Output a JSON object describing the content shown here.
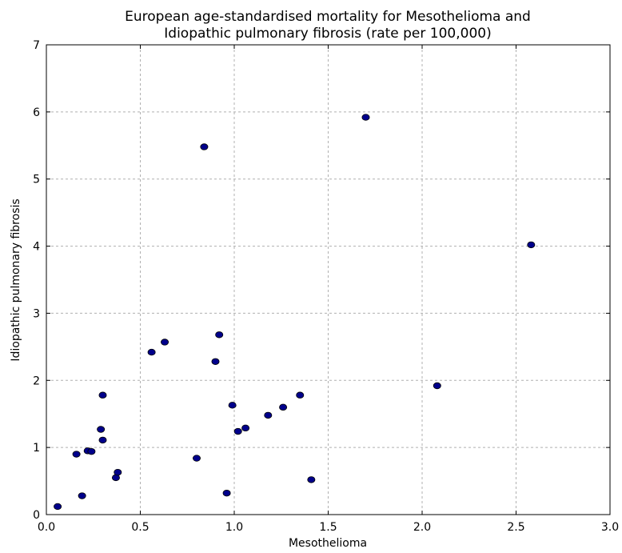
{
  "chart_data": {
    "type": "scatter",
    "title_lines": [
      "European age-standardised mortality for Mesothelioma and",
      "Idiopathic pulmonary fibrosis (rate per 100,000)"
    ],
    "xlabel": "Mesothelioma",
    "ylabel": "Idiopathic pulmonary fibrosis",
    "xlim": [
      0.0,
      3.0
    ],
    "ylim": [
      0,
      7
    ],
    "xticks": [
      "0.0",
      "0.5",
      "1.0",
      "1.5",
      "2.0",
      "2.5",
      "3.0"
    ],
    "yticks": [
      "0",
      "1",
      "2",
      "3",
      "4",
      "5",
      "6",
      "7"
    ],
    "grid": true,
    "colors": {
      "marker_fill": "#00008b",
      "marker_edge": "#000000",
      "grid": "#b0b0b0"
    },
    "points": [
      {
        "x": 0.06,
        "y": 0.12
      },
      {
        "x": 0.16,
        "y": 0.9
      },
      {
        "x": 0.19,
        "y": 0.28
      },
      {
        "x": 0.22,
        "y": 0.95
      },
      {
        "x": 0.24,
        "y": 0.94
      },
      {
        "x": 0.29,
        "y": 1.27
      },
      {
        "x": 0.3,
        "y": 1.11
      },
      {
        "x": 0.3,
        "y": 1.78
      },
      {
        "x": 0.37,
        "y": 0.55
      },
      {
        "x": 0.38,
        "y": 0.63
      },
      {
        "x": 0.56,
        "y": 2.42
      },
      {
        "x": 0.63,
        "y": 2.57
      },
      {
        "x": 0.8,
        "y": 0.84
      },
      {
        "x": 0.84,
        "y": 5.48
      },
      {
        "x": 0.9,
        "y": 2.28
      },
      {
        "x": 0.92,
        "y": 2.68
      },
      {
        "x": 0.96,
        "y": 0.32
      },
      {
        "x": 0.99,
        "y": 1.63
      },
      {
        "x": 1.02,
        "y": 1.24
      },
      {
        "x": 1.06,
        "y": 1.29
      },
      {
        "x": 1.18,
        "y": 1.48
      },
      {
        "x": 1.26,
        "y": 1.6
      },
      {
        "x": 1.35,
        "y": 1.78
      },
      {
        "x": 1.41,
        "y": 0.52
      },
      {
        "x": 1.7,
        "y": 5.92
      },
      {
        "x": 2.08,
        "y": 1.92
      },
      {
        "x": 2.58,
        "y": 4.02
      }
    ]
  }
}
